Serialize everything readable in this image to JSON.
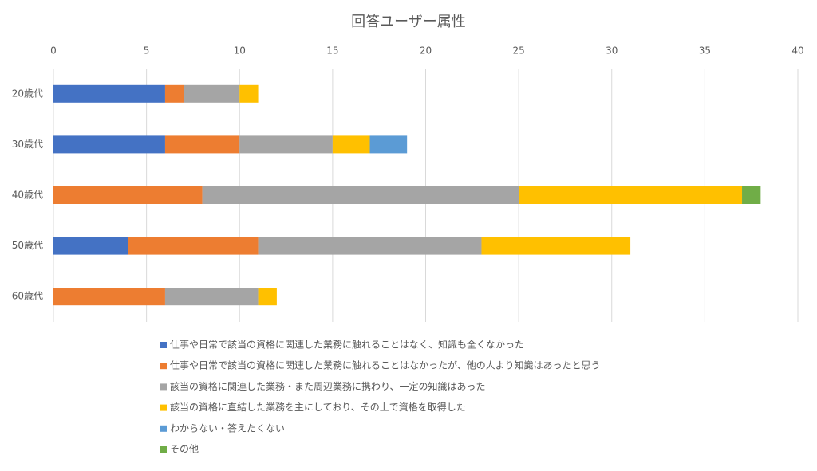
{
  "chart_data": {
    "type": "bar",
    "orientation": "horizontal",
    "stacked": true,
    "title": "回答ユーザー属性",
    "categories": [
      "20歳代",
      "30歳代",
      "40歳代",
      "50歳代",
      "60歳代"
    ],
    "series": [
      {
        "name": "仕事や日常で該当の資格に関連した業務に触れることはなく、知識も全くなかった",
        "color": "#4472c4",
        "values": [
          6,
          6,
          0,
          4,
          0
        ]
      },
      {
        "name": "仕事や日常で該当の資格に関連した業務に触れることはなかったが、他の人より知識はあったと思う",
        "color": "#ed7d31",
        "values": [
          1,
          4,
          8,
          7,
          6
        ]
      },
      {
        "name": "該当の資格に関連した業務・また周辺業務に携わり、一定の知識はあった",
        "color": "#a5a5a5",
        "values": [
          3,
          5,
          17,
          12,
          5
        ]
      },
      {
        "name": "該当の資格に直結した業務を主にしており、その上で資格を取得した",
        "color": "#ffc000",
        "values": [
          1,
          2,
          12,
          8,
          1
        ]
      },
      {
        "name": "わからない・答えたくない",
        "color": "#5b9bd5",
        "values": [
          0,
          2,
          0,
          0,
          0
        ]
      },
      {
        "name": "その他",
        "color": "#70ad47",
        "values": [
          0,
          0,
          1,
          0,
          0
        ]
      }
    ],
    "xlim": [
      0,
      40
    ],
    "xticks": [
      0,
      5,
      10,
      15,
      20,
      25,
      30,
      35,
      40
    ],
    "grid": true,
    "legend": "bottom"
  }
}
